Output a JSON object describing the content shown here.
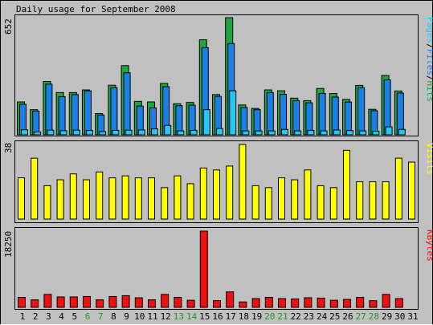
{
  "title": "Daily usage for September 2008",
  "colors": {
    "background": "#c0c0c0",
    "hits": "#1fa640",
    "files": "#1a80e6",
    "pages": "#22c8f0",
    "visits": "#ffff00",
    "kbytes": "#ee1111",
    "weekend_label": "#1f9a1f",
    "weekday_label": "#000000"
  },
  "chart_data": [
    {
      "type": "bar",
      "title": "Daily usage for September 2008",
      "x": [
        "1",
        "2",
        "3",
        "4",
        "5",
        "6",
        "7",
        "8",
        "9",
        "10",
        "11",
        "12",
        "13",
        "14",
        "15",
        "16",
        "17",
        "18",
        "19",
        "20",
        "21",
        "22",
        "23",
        "24",
        "25",
        "26",
        "27",
        "28",
        "29",
        "30",
        "31"
      ],
      "weekend_days": [
        "6",
        "7",
        "13",
        "14",
        "20",
        "21",
        "27",
        "28"
      ],
      "ylabel": "Pages/Files/Hits",
      "y_tick_label": "652",
      "ylim": [
        0,
        652
      ],
      "series": [
        {
          "name": "Hits",
          "values": [
            183,
            140,
            297,
            235,
            235,
            250,
            118,
            276,
            385,
            186,
            183,
            286,
            173,
            180,
            529,
            224,
            652,
            166,
            147,
            250,
            245,
            204,
            190,
            258,
            230,
            197,
            275,
            142,
            330,
            244,
            0
          ]
        },
        {
          "name": "Files",
          "values": [
            170,
            132,
            282,
            212,
            224,
            245,
            110,
            262,
            345,
            160,
            150,
            268,
            162,
            165,
            485,
            214,
            508,
            152,
            140,
            235,
            225,
            190,
            178,
            230,
            210,
            182,
            262,
            134,
            306,
            232,
            0
          ]
        },
        {
          "name": "Pages",
          "values": [
            28,
            16,
            26,
            23,
            26,
            24,
            18,
            25,
            26,
            27,
            33,
            52,
            22,
            25,
            140,
            35,
            245,
            22,
            22,
            22,
            30,
            22,
            25,
            22,
            27,
            24,
            22,
            20,
            44,
            30,
            0
          ]
        }
      ]
    },
    {
      "type": "bar",
      "x": [
        "1",
        "2",
        "3",
        "4",
        "5",
        "6",
        "7",
        "8",
        "9",
        "10",
        "11",
        "12",
        "13",
        "14",
        "15",
        "16",
        "17",
        "18",
        "19",
        "20",
        "21",
        "22",
        "23",
        "24",
        "25",
        "26",
        "27",
        "28",
        "29",
        "30",
        "31"
      ],
      "ylabel": "Visits",
      "y_tick_label": "38",
      "ylim": [
        0,
        38
      ],
      "series": [
        {
          "name": "Visits",
          "values": [
            21,
            31,
            17,
            20,
            23,
            20,
            24,
            21,
            22,
            21,
            21,
            16,
            22,
            18,
            26,
            25,
            27,
            38,
            17,
            16,
            21,
            20,
            25,
            17,
            16,
            35,
            19,
            19,
            19,
            31,
            29
          ]
        }
      ]
    },
    {
      "type": "bar",
      "x": [
        "1",
        "2",
        "3",
        "4",
        "5",
        "6",
        "7",
        "8",
        "9",
        "10",
        "11",
        "12",
        "13",
        "14",
        "15",
        "16",
        "17",
        "18",
        "19",
        "20",
        "21",
        "22",
        "23",
        "24",
        "25",
        "26",
        "27",
        "28",
        "29",
        "30",
        "31"
      ],
      "ylabel": "KBytes",
      "y_tick_label": "18250",
      "ylim": [
        0,
        18250
      ],
      "series": [
        {
          "name": "KBytes",
          "values": [
            2400,
            1800,
            3100,
            2500,
            2500,
            2600,
            1800,
            2600,
            2800,
            2300,
            1800,
            3100,
            2400,
            1700,
            18250,
            1600,
            3700,
            1300,
            2100,
            2400,
            2100,
            2000,
            2300,
            2200,
            1700,
            1900,
            2400,
            1600,
            3100,
            2100,
            0
          ]
        }
      ]
    }
  ]
}
